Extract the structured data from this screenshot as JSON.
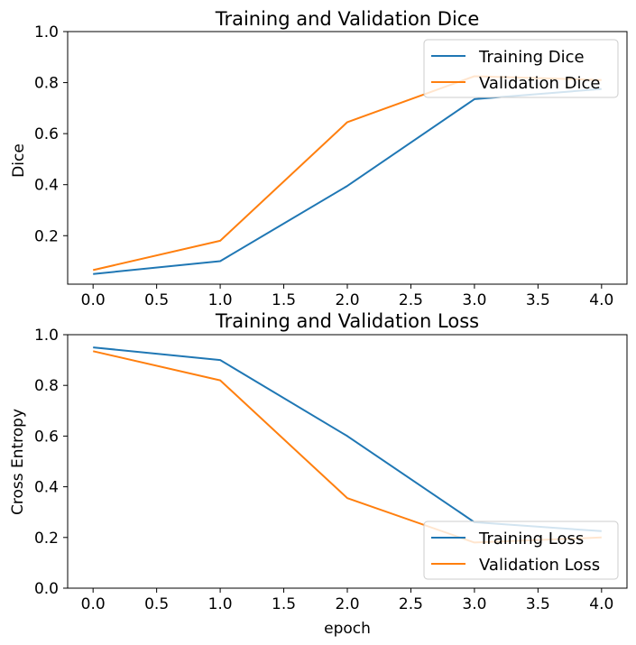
{
  "chart_data": [
    {
      "type": "line",
      "title": "Training and Validation Dice",
      "xlabel": "",
      "ylabel": "Dice",
      "xlim": [
        -0.2,
        4.2
      ],
      "ylim": [
        0.01,
        1.0
      ],
      "x_ticks": [
        "0.0",
        "0.5",
        "1.0",
        "1.5",
        "2.0",
        "2.5",
        "3.0",
        "3.5",
        "4.0"
      ],
      "y_ticks": [
        "0.2",
        "0.4",
        "0.6",
        "0.8",
        "1.0"
      ],
      "legend_position": "upper-right",
      "grid": false,
      "series": [
        {
          "name": "Training Dice",
          "color": "#1f77b4",
          "x": [
            0,
            1,
            2,
            3,
            4
          ],
          "values": [
            0.05,
            0.1,
            0.395,
            0.735,
            0.775
          ]
        },
        {
          "name": "Validation Dice",
          "color": "#ff7f0e",
          "x": [
            0,
            1,
            2,
            3,
            4
          ],
          "values": [
            0.065,
            0.18,
            0.645,
            0.825,
            0.81
          ]
        }
      ]
    },
    {
      "type": "line",
      "title": "Training and Validation Loss",
      "xlabel": "epoch",
      "ylabel": "Cross Entropy",
      "xlim": [
        -0.2,
        4.2
      ],
      "ylim": [
        0.0,
        1.0
      ],
      "x_ticks": [
        "0.0",
        "0.5",
        "1.0",
        "1.5",
        "2.0",
        "2.5",
        "3.0",
        "3.5",
        "4.0"
      ],
      "y_ticks": [
        "0.0",
        "0.2",
        "0.4",
        "0.6",
        "0.8",
        "1.0"
      ],
      "legend_position": "lower-right",
      "grid": false,
      "series": [
        {
          "name": "Training Loss",
          "color": "#1f77b4",
          "x": [
            0,
            1,
            2,
            3,
            4
          ],
          "values": [
            0.95,
            0.9,
            0.6,
            0.26,
            0.225
          ]
        },
        {
          "name": "Validation Loss",
          "color": "#ff7f0e",
          "x": [
            0,
            1,
            2,
            3,
            4
          ],
          "values": [
            0.935,
            0.82,
            0.355,
            0.18,
            0.2
          ]
        }
      ]
    }
  ]
}
